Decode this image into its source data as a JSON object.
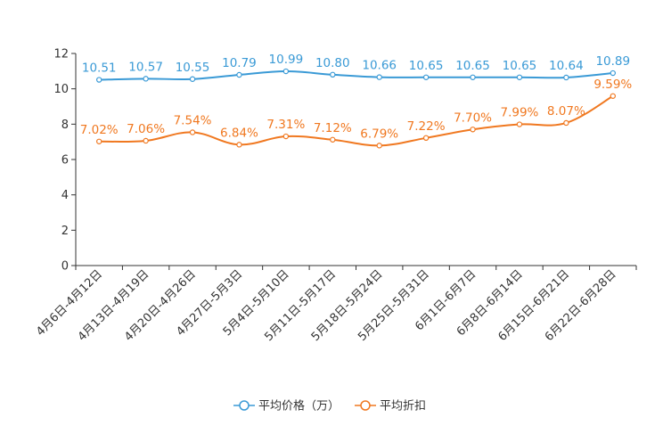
{
  "chart_data": {
    "type": "line",
    "title": "",
    "xlabel": "",
    "ylabel": "",
    "ylim": [
      0,
      12
    ],
    "yticks": [
      0,
      2,
      4,
      6,
      8,
      10,
      12
    ],
    "grid": false,
    "legend_position": "bottom-center",
    "categories": [
      "4月6日-4月12日",
      "4月13日-4月19日",
      "4月20日-4月26日",
      "4月27日-5月3日",
      "5月4日-5月10日",
      "5月11日-5月17日",
      "5月18日-5月24日",
      "5月25日-5月31日",
      "6月1日-6月7日",
      "6月8日-6月14日",
      "6月15日-6月21日",
      "6月22日-6月28日"
    ],
    "series": [
      {
        "name": "平均价格（万）",
        "color": "#3a9ad6",
        "values": [
          10.51,
          10.57,
          10.55,
          10.79,
          10.99,
          10.8,
          10.66,
          10.65,
          10.65,
          10.65,
          10.64,
          10.89
        ],
        "labels": [
          "10.51",
          "10.57",
          "10.55",
          "10.79",
          "10.99",
          "10.80",
          "10.66",
          "10.65",
          "10.65",
          "10.65",
          "10.64",
          "10.89"
        ]
      },
      {
        "name": "平均折扣",
        "color": "#f07820",
        "values": [
          7.02,
          7.06,
          7.54,
          6.84,
          7.31,
          7.12,
          6.79,
          7.22,
          7.7,
          7.99,
          8.07,
          9.59
        ],
        "labels": [
          "7.02%",
          "7.06%",
          "7.54%",
          "6.84%",
          "7.31%",
          "7.12%",
          "6.79%",
          "7.22%",
          "7.70%",
          "7.99%",
          "8.07%",
          "9.59%"
        ]
      }
    ]
  }
}
